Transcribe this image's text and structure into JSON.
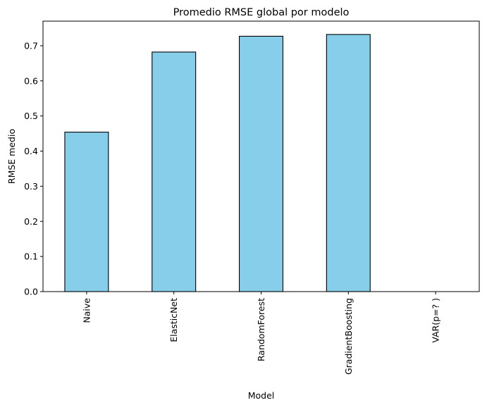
{
  "chart_data": {
    "type": "bar",
    "title": "Promedio RMSE global por modelo",
    "xlabel": "Model",
    "ylabel": "RMSE medio",
    "categories": [
      "Naive",
      "ElasticNet",
      "RandomForest",
      "GradientBoosting",
      "VAR(p=? )"
    ],
    "values": [
      0.454,
      0.682,
      0.727,
      0.732,
      0.0
    ],
    "ylim": [
      0,
      0.77
    ],
    "yticks": [
      0.0,
      0.1,
      0.2,
      0.3,
      0.4,
      0.5,
      0.6,
      0.7
    ],
    "ytick_labels": [
      "0.0",
      "0.1",
      "0.2",
      "0.3",
      "0.4",
      "0.5",
      "0.6",
      "0.7"
    ],
    "grid": false,
    "legend": "none",
    "bar_color": "#87ceeb",
    "edge_color": "#000000"
  }
}
